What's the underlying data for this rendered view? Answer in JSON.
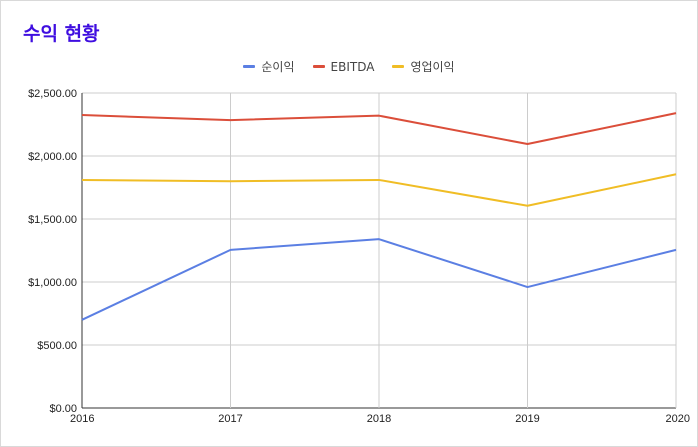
{
  "chart_data": {
    "type": "line",
    "title": "수익 현황",
    "x": [
      "2016",
      "2017",
      "2018",
      "2019",
      "2020"
    ],
    "ylim": [
      0,
      2500
    ],
    "yticks": [
      0,
      500,
      1000,
      1500,
      2000,
      2500
    ],
    "ytick_labels": [
      "$0.00",
      "$500.00",
      "$1,000.00",
      "$1,500.00",
      "$2,000.00",
      "$2,500.00"
    ],
    "grid": true,
    "legend_position": "top",
    "series": [
      {
        "name": "순이익",
        "color": "#5b7fe3",
        "values": [
          700,
          1255,
          1340,
          960,
          1255
        ]
      },
      {
        "name": "EBITDA",
        "color": "#db4e3a",
        "values": [
          2325,
          2285,
          2320,
          2095,
          2340
        ]
      },
      {
        "name": "영업이익",
        "color": "#f0bd25",
        "values": [
          1810,
          1800,
          1810,
          1605,
          1855
        ]
      }
    ]
  }
}
